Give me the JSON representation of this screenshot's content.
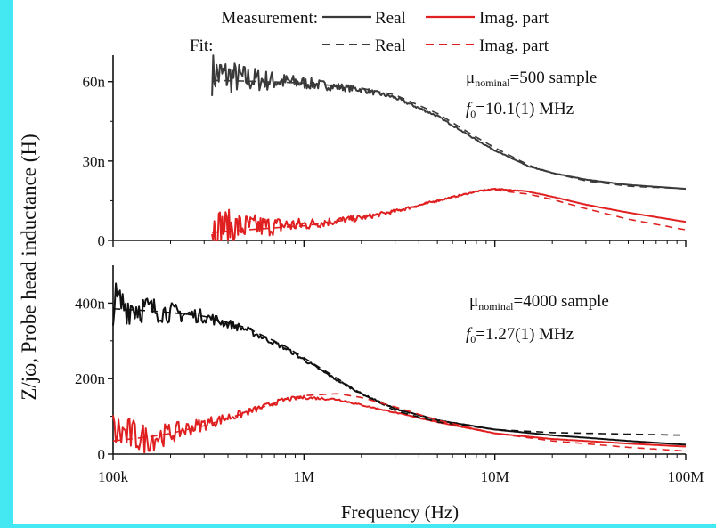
{
  "legend": {
    "row1_label": "Measurement:",
    "row2_label": "Fit:",
    "real": "Real",
    "imag": "Imag. part"
  },
  "colors": {
    "real": "#3a3a3a",
    "imag": "#e02020",
    "real_bottom": "#111111",
    "background": "#ffffff",
    "border_accent": "#44e8f2"
  },
  "y_axis_label": {
    "main": "Z/jω, Probe head inductance (H)"
  },
  "x_axis_label": "Frequency (Hz)",
  "chart_data": [
    {
      "type": "line",
      "panel": "top",
      "annotation": {
        "mu": "μ",
        "sub": "nominal",
        "rest": "=500 sample",
        "f": "f",
        "f_sub": "0",
        "f_rest": "=10.1(1) MHz"
      },
      "x_scale": "log",
      "xlim": [
        100000,
        100000000
      ],
      "ylim": [
        0,
        70
      ],
      "y_unit": "nH",
      "y_ticks": [
        {
          "v": 0,
          "label": "0"
        },
        {
          "v": 30,
          "label": "30n"
        },
        {
          "v": 60,
          "label": "60n"
        }
      ],
      "measurement_start": 330000,
      "series": [
        {
          "name": "Real",
          "kind": "measurement",
          "color": "real",
          "x": [
            330000,
            500000,
            1000000,
            2000000,
            3000000,
            5000000,
            8000000,
            10000000,
            15000000,
            20000000,
            30000000,
            50000000,
            100000000
          ],
          "y": [
            63,
            61,
            59.5,
            57,
            54,
            47,
            38,
            34,
            28,
            25.5,
            23,
            21,
            19.5
          ]
        },
        {
          "name": "Imag. part",
          "kind": "measurement",
          "color": "imag",
          "x": [
            330000,
            500000,
            1000000,
            2000000,
            3000000,
            5000000,
            8000000,
            10000000,
            15000000,
            20000000,
            30000000,
            50000000,
            100000000
          ],
          "y": [
            5,
            5,
            6,
            8.5,
            11,
            15,
            18.5,
            19.5,
            18.5,
            16.5,
            13.5,
            10.5,
            7
          ]
        },
        {
          "name": "Real",
          "kind": "fit",
          "color": "real",
          "x": [
            330000,
            500000,
            1000000,
            2000000,
            3000000,
            5000000,
            8000000,
            10000000,
            15000000,
            20000000,
            30000000,
            50000000,
            100000000
          ],
          "y": [
            60.5,
            60.2,
            59.5,
            57.5,
            55,
            48,
            39,
            35,
            28.5,
            25.5,
            22.5,
            20.5,
            19.5
          ]
        },
        {
          "name": "Imag. part",
          "kind": "fit",
          "color": "imag",
          "x": [
            330000,
            500000,
            1000000,
            2000000,
            3000000,
            5000000,
            8000000,
            10000000,
            15000000,
            20000000,
            30000000,
            50000000,
            100000000
          ],
          "y": [
            3,
            4,
            5.5,
            8.5,
            11,
            15,
            18.5,
            19,
            17.5,
            15.5,
            12,
            8,
            4
          ]
        }
      ]
    },
    {
      "type": "line",
      "panel": "bottom",
      "annotation": {
        "mu": "μ",
        "sub": "nominal",
        "rest": "=4000 sample",
        "f": "f",
        "f_sub": "0",
        "f_rest": "=1.27(1) MHz"
      },
      "x_scale": "log",
      "xlim": [
        100000,
        100000000
      ],
      "ylim": [
        0,
        500
      ],
      "y_unit": "nH",
      "y_ticks": [
        {
          "v": 0,
          "label": "0"
        },
        {
          "v": 200,
          "label": "200n"
        },
        {
          "v": 400,
          "label": "400n"
        }
      ],
      "x_ticks": [
        {
          "v": 100000,
          "label": "100k"
        },
        {
          "v": 1000000,
          "label": "1M"
        },
        {
          "v": 10000000,
          "label": "10M"
        },
        {
          "v": 100000000,
          "label": "100M"
        }
      ],
      "measurement_start": 100000,
      "series": [
        {
          "name": "Real",
          "kind": "measurement",
          "color": "real_bottom",
          "x": [
            100000,
            150000,
            200000,
            300000,
            500000,
            800000,
            1000000,
            1500000,
            2000000,
            3000000,
            5000000,
            10000000,
            20000000,
            50000000,
            100000000
          ],
          "y": [
            400,
            385,
            375,
            365,
            330,
            280,
            250,
            195,
            160,
            120,
            90,
            65,
            50,
            35,
            25
          ]
        },
        {
          "name": "Imag. part",
          "kind": "measurement",
          "color": "imag",
          "x": [
            100000,
            150000,
            200000,
            300000,
            500000,
            800000,
            1000000,
            1500000,
            2000000,
            3000000,
            5000000,
            10000000,
            20000000,
            50000000,
            100000000
          ],
          "y": [
            60,
            40,
            55,
            80,
            110,
            145,
            150,
            145,
            130,
            110,
            85,
            55,
            40,
            28,
            20
          ]
        },
        {
          "name": "Real",
          "kind": "fit",
          "color": "real_bottom",
          "x": [
            100000,
            150000,
            200000,
            300000,
            500000,
            800000,
            1000000,
            1500000,
            2000000,
            3000000,
            5000000,
            10000000,
            20000000,
            50000000,
            100000000
          ],
          "y": [
            385,
            380,
            375,
            365,
            335,
            285,
            255,
            200,
            160,
            115,
            85,
            65,
            57,
            53,
            50
          ]
        },
        {
          "name": "Imag. part",
          "kind": "fit",
          "color": "imag",
          "x": [
            100000,
            150000,
            200000,
            300000,
            500000,
            800000,
            1000000,
            1500000,
            2000000,
            3000000,
            5000000,
            10000000,
            20000000,
            50000000,
            100000000
          ],
          "y": [
            35,
            45,
            55,
            75,
            110,
            145,
            155,
            160,
            150,
            125,
            90,
            55,
            35,
            18,
            8
          ]
        }
      ]
    }
  ]
}
